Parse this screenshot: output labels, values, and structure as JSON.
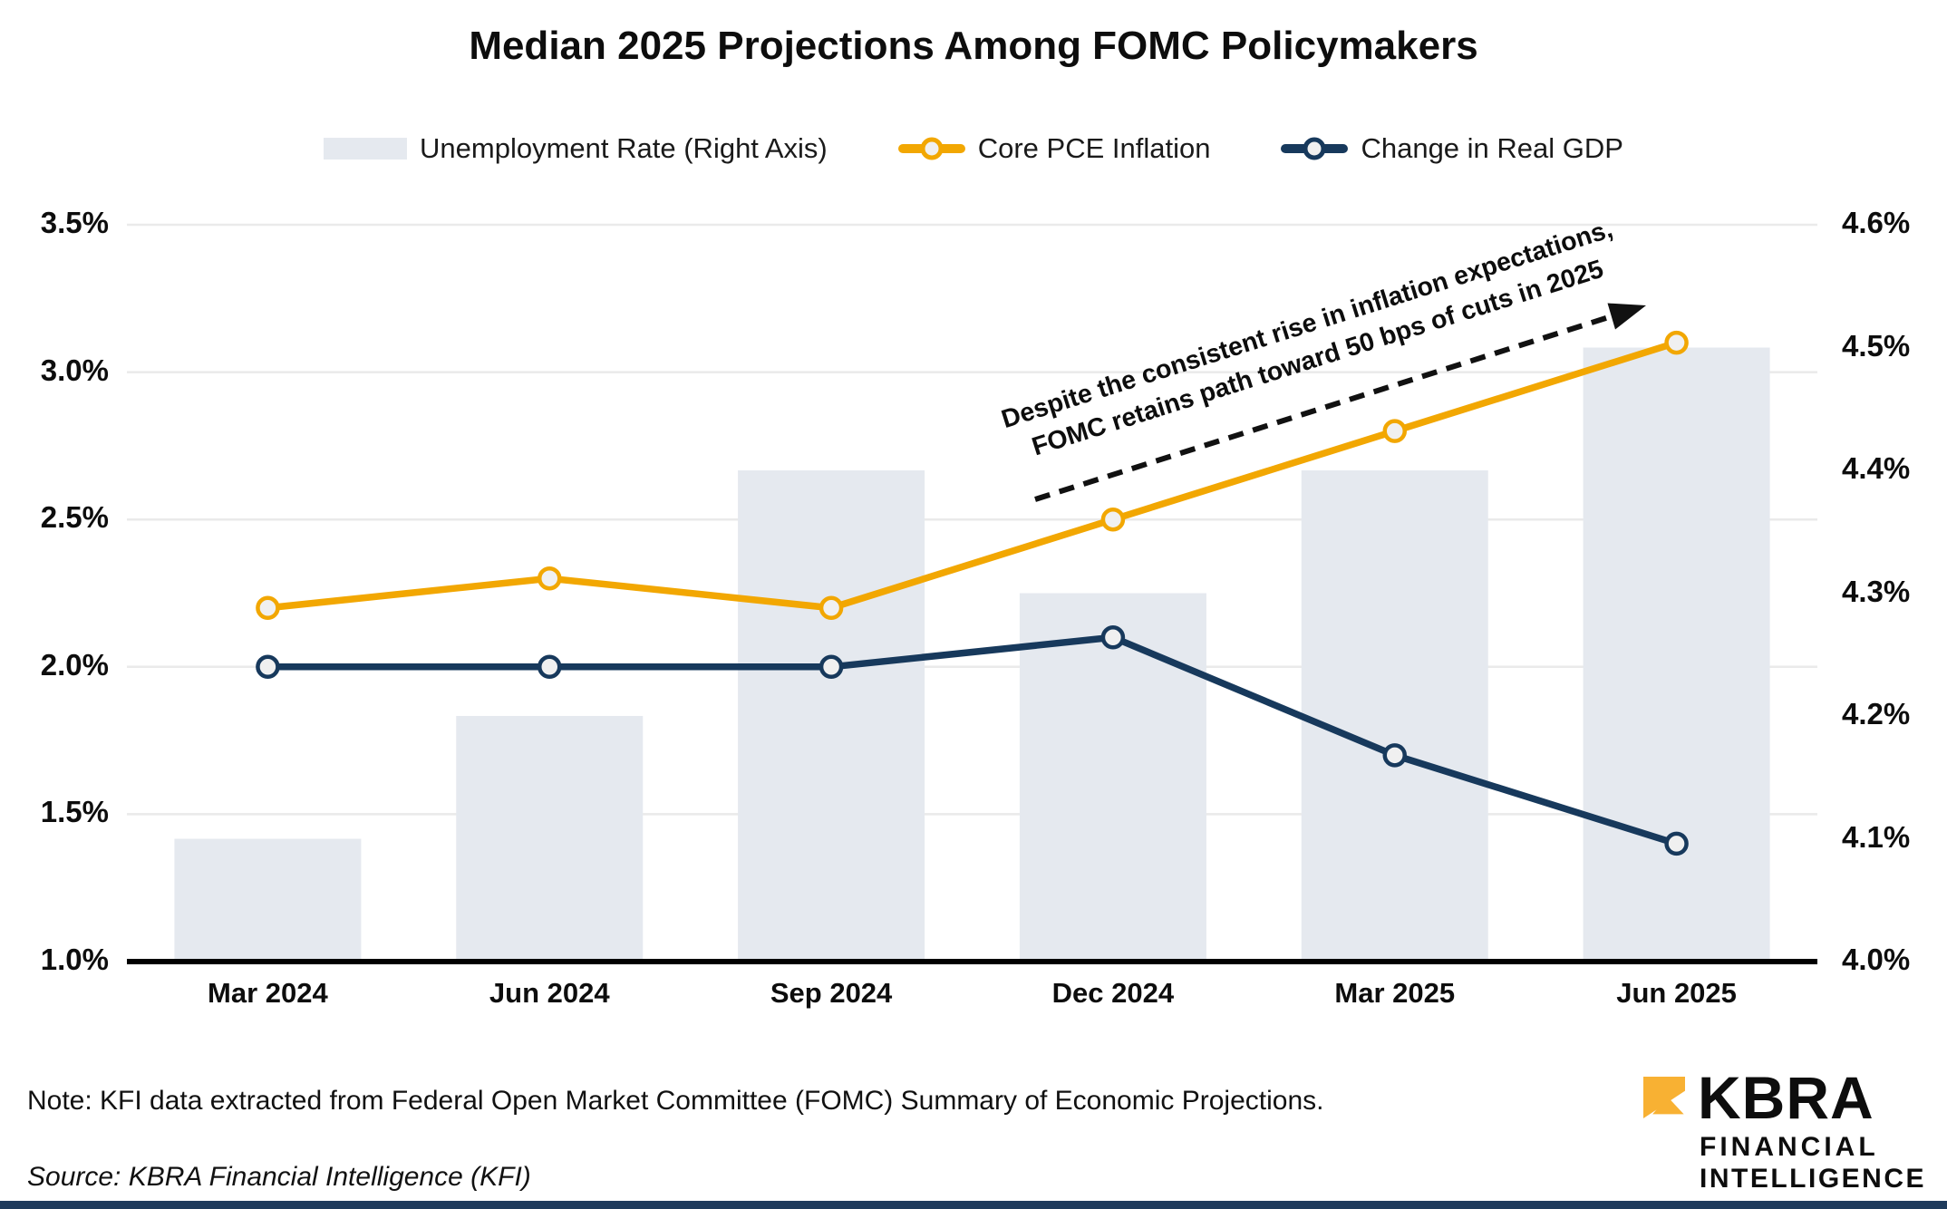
{
  "title": "Median 2025 Projections Among FOMC Policymakers",
  "legend": [
    {
      "label": "Unemployment Rate (Right Axis)",
      "type": "bar",
      "color": "#E5E9EF"
    },
    {
      "label": "Core PCE Inflation",
      "type": "line",
      "color": "#F2A702"
    },
    {
      "label": "Change in Real GDP",
      "type": "line",
      "color": "#17395C"
    }
  ],
  "annotation": {
    "line1": "Despite the consistent rise in inflation expectations,",
    "line2": "FOMC retains path toward 50 bps of cuts in 2025"
  },
  "note": "Note: KFI data extracted from Federal Open Market Committee (FOMC) Summary of Economic Projections.",
  "source": "Source: KBRA Financial Intelligence (KFI)",
  "logo": {
    "brand": "KBRA",
    "line1": "FINANCIAL",
    "line2": "INTELLIGENCE",
    "mark_color": "#F8B133",
    "strip_color": "#1F3B5C"
  },
  "chart_data": {
    "type": "combo",
    "categories": [
      "Mar 2024",
      "Jun 2024",
      "Sep 2024",
      "Dec 2024",
      "Mar 2025",
      "Jun 2025"
    ],
    "series": [
      {
        "name": "Unemployment Rate (Right Axis)",
        "type": "bar",
        "axis": "right",
        "color": "#E5E9EF",
        "values": [
          4.1,
          4.2,
          4.4,
          4.3,
          4.4,
          4.5
        ]
      },
      {
        "name": "Core PCE Inflation",
        "type": "line",
        "axis": "left",
        "color": "#F2A702",
        "marker_fill": "#F0F0F0",
        "values": [
          2.2,
          2.3,
          2.2,
          2.5,
          2.8,
          3.1
        ]
      },
      {
        "name": "Change in Real GDP",
        "type": "line",
        "axis": "left",
        "color": "#17395C",
        "marker_fill": "#F0F0F0",
        "values": [
          2.0,
          2.0,
          2.0,
          2.1,
          1.7,
          1.4
        ]
      }
    ],
    "left_axis": {
      "range": [
        1.0,
        3.5
      ],
      "ticks": [
        1.0,
        1.5,
        2.0,
        2.5,
        3.0,
        3.5
      ],
      "labels": [
        "1.0%",
        "1.5%",
        "2.0%",
        "2.5%",
        "3.0%",
        "3.5%"
      ]
    },
    "right_axis": {
      "range": [
        4.0,
        4.6
      ],
      "ticks": [
        4.0,
        4.1,
        4.2,
        4.3,
        4.4,
        4.5,
        4.6
      ],
      "labels": [
        "4.0%",
        "4.1%",
        "4.2%",
        "4.3%",
        "4.4%",
        "4.5%",
        "4.6%"
      ]
    },
    "grid": true,
    "legend_position": "top",
    "gridline_color": "#EAEAEA",
    "axis_line_color": "#000000",
    "annotation_arrow_color": "#111111"
  }
}
